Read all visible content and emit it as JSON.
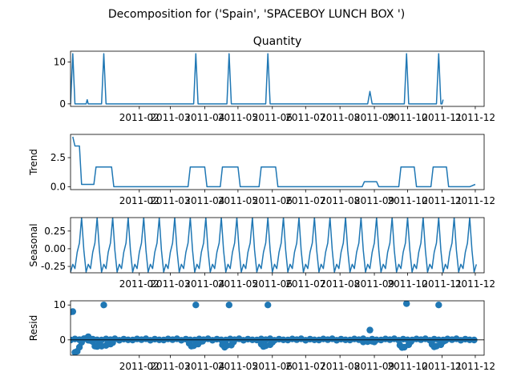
{
  "figure": {
    "title": "Decomposition for ('Spain', 'SPACEBOY LUNCH BOX ')"
  },
  "colors": {
    "line": "#1f77b4",
    "marker": "#1f77b4",
    "axes": "#000000",
    "background": "#ffffff"
  },
  "chart_data": [
    {
      "type": "line",
      "title": "Quantity",
      "ylabel": "",
      "ylim": [
        -0.6,
        12.6
      ],
      "yticks": [
        0,
        10
      ],
      "xticks": [
        "2011-02",
        "2011-03",
        "2011-04",
        "2011-05",
        "2011-06",
        "2011-07",
        "2011-08",
        "2011-09",
        "2011-10",
        "2011-11",
        "2011-12"
      ],
      "series": [
        {
          "x": [
            "2010-12-01",
            "2010-12-03",
            "2010-12-05",
            "2010-12-07",
            "2010-12-15",
            "2010-12-16",
            "2010-12-17",
            "2010-12-29",
            "2010-12-31",
            "2011-01-02",
            "2011-03-22",
            "2011-03-24",
            "2011-03-26",
            "2011-04-21",
            "2011-04-23",
            "2011-04-25",
            "2011-05-26",
            "2011-05-28",
            "2011-05-30",
            "2011-08-26",
            "2011-08-28",
            "2011-08-30",
            "2011-09-28",
            "2011-09-30",
            "2011-10-02",
            "2011-10-27",
            "2011-10-29",
            "2011-10-31",
            "2011-11-01",
            "2011-11-02"
          ],
          "y": [
            0,
            12,
            0,
            0,
            0,
            1,
            0,
            0,
            12,
            0,
            0,
            12,
            0,
            0,
            12,
            0,
            0,
            12,
            0,
            0,
            3,
            0,
            0,
            12,
            0,
            0,
            12,
            0,
            0,
            1
          ]
        }
      ]
    },
    {
      "type": "line",
      "title": "",
      "ylabel": "Trend",
      "ylim": [
        -0.25,
        4.5
      ],
      "yticks": [
        0.0,
        2.5
      ],
      "xticks": [
        "2011-02",
        "2011-03",
        "2011-04",
        "2011-05",
        "2011-06",
        "2011-07",
        "2011-08",
        "2011-09",
        "2011-10",
        "2011-11",
        "2011-12"
      ],
      "series": [
        {
          "x": [
            "2010-12-03",
            "2010-12-05",
            "2010-12-07",
            "2010-12-09",
            "2010-12-11",
            "2010-12-17",
            "2010-12-22",
            "2010-12-24",
            "2011-01-07",
            "2011-01-09",
            "2011-03-17",
            "2011-03-19",
            "2011-04-01",
            "2011-04-03",
            "2011-04-15",
            "2011-04-17",
            "2011-05-01",
            "2011-05-03",
            "2011-05-20",
            "2011-05-22",
            "2011-06-04",
            "2011-06-06",
            "2011-08-21",
            "2011-08-23",
            "2011-09-03",
            "2011-09-05",
            "2011-09-23",
            "2011-09-25",
            "2011-10-07",
            "2011-10-09",
            "2011-10-22",
            "2011-10-24",
            "2011-11-05",
            "2011-11-07",
            "2011-11-26",
            "2011-12-01"
          ],
          "y": [
            4.3,
            3.5,
            3.5,
            3.5,
            0.2,
            0.2,
            0.2,
            1.7,
            1.7,
            0,
            0,
            1.7,
            1.7,
            0,
            0,
            1.7,
            1.7,
            0,
            0,
            1.7,
            1.7,
            0,
            0,
            0.43,
            0.43,
            0,
            0,
            1.7,
            1.7,
            0,
            0,
            1.7,
            1.7,
            0,
            0,
            0.2
          ]
        }
      ]
    },
    {
      "type": "line",
      "title": "",
      "ylabel": "Seasonal",
      "ylim": [
        -0.34,
        0.44
      ],
      "yticks": [
        0.25,
        0.0,
        -0.25
      ],
      "xticks": [
        "2011-02",
        "2011-03",
        "2011-04",
        "2011-05",
        "2011-06",
        "2011-07",
        "2011-08",
        "2011-09",
        "2011-10",
        "2011-11",
        "2011-12"
      ],
      "series": [
        {
          "start": "2010-12-01",
          "end": "2011-12-02",
          "step_days": 2,
          "period_points": 7,
          "pattern": [
            -0.33,
            -0.22,
            -0.28,
            -0.05,
            0.08,
            0.44,
            -0.02
          ]
        }
      ]
    },
    {
      "type": "scatter",
      "title": "",
      "ylabel": "Resid",
      "ylim": [
        -4.4,
        11.2
      ],
      "yticks": [
        0,
        10
      ],
      "xticks": [
        "2011-02",
        "2011-03",
        "2011-04",
        "2011-05",
        "2011-06",
        "2011-07",
        "2011-08",
        "2011-09",
        "2011-10",
        "2011-11",
        "2011-12"
      ],
      "series": [
        {
          "x": [
            "2010-12-01",
            "2010-12-03",
            "2010-12-05",
            "2010-12-07",
            "2010-12-09",
            "2010-12-11",
            "2010-12-13",
            "2010-12-15",
            "2010-12-17",
            "2010-12-19",
            "2010-12-21",
            "2010-12-23",
            "2010-12-25",
            "2010-12-27",
            "2010-12-29",
            "2010-12-31",
            "2011-01-02",
            "2011-01-04",
            "2011-01-06",
            "2011-01-08",
            "2011-03-18",
            "2011-03-20",
            "2011-03-22",
            "2011-03-24",
            "2011-03-26",
            "2011-03-28",
            "2011-03-30",
            "2011-04-17",
            "2011-04-19",
            "2011-04-21",
            "2011-04-23",
            "2011-04-25",
            "2011-04-27",
            "2011-05-22",
            "2011-05-24",
            "2011-05-26",
            "2011-05-28",
            "2011-05-30",
            "2011-06-01",
            "2011-08-22",
            "2011-08-24",
            "2011-08-26",
            "2011-08-28",
            "2011-08-30",
            "2011-09-01",
            "2011-09-24",
            "2011-09-26",
            "2011-09-28",
            "2011-09-30",
            "2011-10-02",
            "2011-10-04",
            "2011-10-23",
            "2011-10-25",
            "2011-10-27",
            "2011-10-29",
            "2011-10-31",
            "2011-11-02",
            "2011-11-04"
          ],
          "y": [
            8.0,
            8.1,
            -3.6,
            -3.3,
            -2.1,
            -0.7,
            0.3,
            0.4,
            0.9,
            -0.2,
            -0.5,
            -1.8,
            -1.9,
            -0.7,
            -1.8,
            10.0,
            -1.6,
            -0.6,
            -1.2,
            -0.8,
            -1.0,
            -1.8,
            -1.7,
            10.0,
            -1.2,
            -0.5,
            -0.4,
            -1.4,
            -2.1,
            -1.6,
            10.0,
            -1.5,
            -0.6,
            -1.2,
            -1.9,
            -1.7,
            10.0,
            -1.4,
            -0.7,
            -0.6,
            -0.3,
            -0.5,
            2.8,
            -0.4,
            -0.6,
            -1.5,
            -2.2,
            -2.1,
            10.4,
            -1.4,
            -0.5,
            -1.3,
            -2.0,
            -1.8,
            10.0,
            -1.4,
            -0.5,
            -0.2
          ],
          "baseline_start": "2010-12-01",
          "baseline_end": "2011-12-01",
          "baseline_step_days": 4,
          "baseline_pattern": [
            -0.05,
            0.25,
            0.05,
            0.3,
            -0.1,
            0.2,
            0.0
          ]
        }
      ]
    }
  ]
}
